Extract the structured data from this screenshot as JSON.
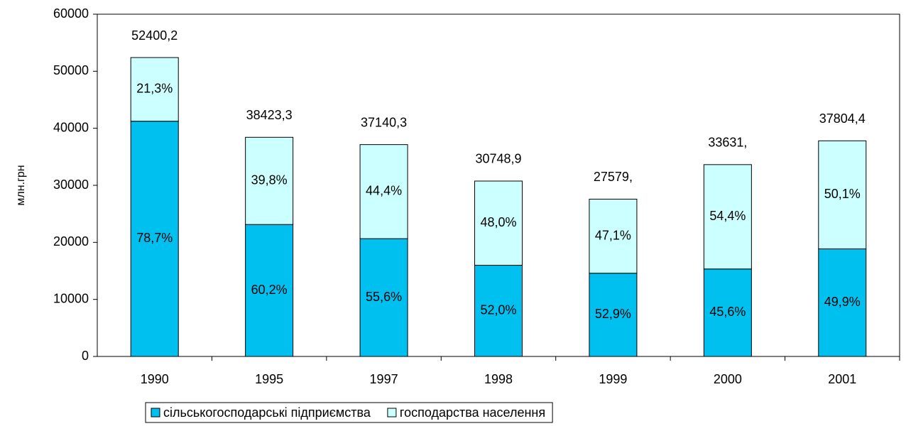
{
  "chart_data": {
    "type": "stacked_bar",
    "y_label": "млн.грн",
    "categories": [
      "1990",
      "1995",
      "1997",
      "1998",
      "1999",
      "2000",
      "2001"
    ],
    "series": [
      {
        "name": "сільськогосподарські підприємства",
        "color": "#00c0f0",
        "values": [
          41239,
          23131,
          20650,
          15989,
          14589,
          15336,
          18864
        ],
        "value_labels": [
          "78,7%",
          "60,2%",
          "55,6%",
          "52,0%",
          "52,9%",
          "45,6%",
          "49,9%"
        ]
      },
      {
        "name": "господарства населення",
        "color": "#ccffff",
        "values": [
          11161,
          15292,
          16490,
          14760,
          12990,
          18295,
          18940
        ],
        "value_labels": [
          "21,3%",
          "39,8%",
          "44,4%",
          "48,0%",
          "47,1%",
          "54,4%",
          "50,1%"
        ]
      }
    ],
    "totals": [
      {
        "value": 52400.2,
        "label": "52400,2"
      },
      {
        "value": 38423.3,
        "label": "38423,3"
      },
      {
        "value": 37140.3,
        "label": "37140,3"
      },
      {
        "value": 30748.9,
        "label": "30748,9"
      },
      {
        "value": 27579,
        "label": "27579,"
      },
      {
        "value": 33631,
        "label": "33631,"
      },
      {
        "value": 37804.4,
        "label": "37804,4"
      }
    ],
    "ylim": [
      0,
      60000
    ],
    "yticks": [
      0,
      10000,
      20000,
      30000,
      40000,
      50000,
      60000
    ],
    "legend": "bottom"
  }
}
